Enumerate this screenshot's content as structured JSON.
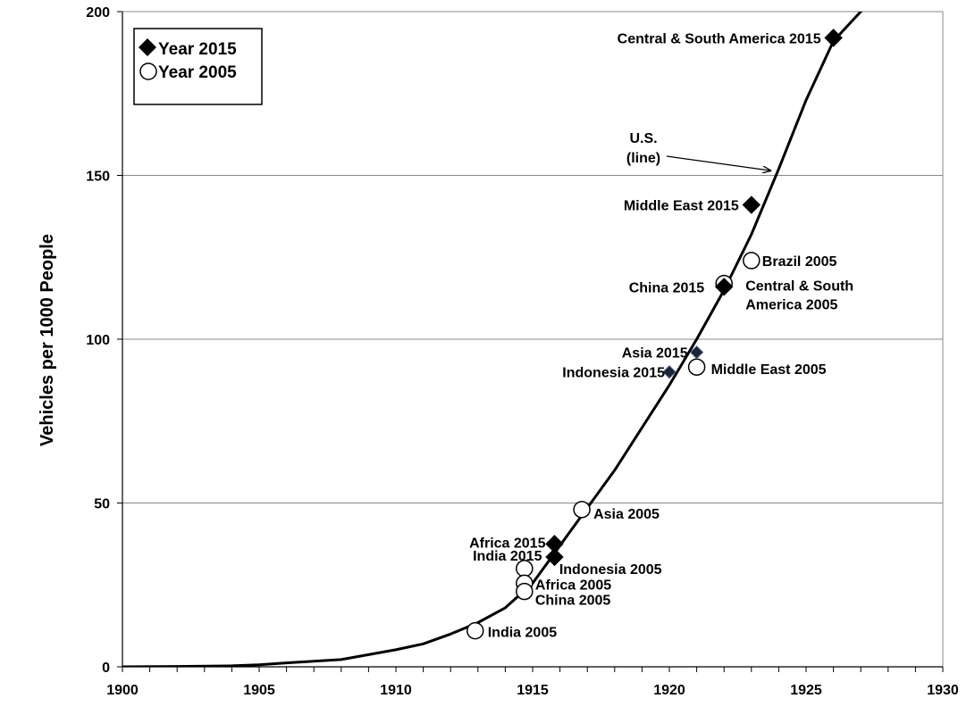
{
  "chart_data": {
    "type": "line",
    "title": "",
    "xlabel": "",
    "ylabel": "Vehicles per 1000 People",
    "xlim": [
      1900,
      1930
    ],
    "ylim": [
      0,
      200
    ],
    "x_ticks": [
      "1900",
      "1905",
      "1910",
      "1915",
      "1920",
      "1925",
      "1930"
    ],
    "y_ticks": [
      "0",
      "50",
      "100",
      "150",
      "200"
    ],
    "grid": "horizontal",
    "legend": {
      "position": "top-left",
      "entries": [
        {
          "label": "Year 2015",
          "marker": "filled-diamond"
        },
        {
          "label": "Year 2005",
          "marker": "open-circle"
        }
      ]
    },
    "us_line": {
      "x": [
        1900,
        1902,
        1904,
        1905,
        1906,
        1908,
        1910,
        1911,
        1912,
        1913,
        1914,
        1915,
        1916,
        1917,
        1918,
        1919,
        1920,
        1921,
        1922,
        1923,
        1924,
        1925,
        1926,
        1927,
        1927.5
      ],
      "y": [
        0,
        0.1,
        0.3,
        0.6,
        1.2,
        2.2,
        5.2,
        7,
        10,
        13.5,
        18,
        25.5,
        37,
        48.5,
        60,
        73,
        86,
        100,
        115,
        132,
        152,
        173,
        191,
        200,
        204
      ]
    },
    "us_line_annotation": {
      "text_line1": "U.S.",
      "text_line2": "(line)",
      "points_to": [
        1923.8,
        152
      ]
    },
    "points_2015": [
      {
        "label": "Central & South America 2015",
        "x": 1926,
        "y": 192,
        "size": "large"
      },
      {
        "label": "Middle East 2015",
        "x": 1923,
        "y": 141,
        "size": "large"
      },
      {
        "label": "China 2015",
        "x": 1922,
        "y": 116,
        "size": "large"
      },
      {
        "label": "Asia 2015",
        "x": 1921,
        "y": 96,
        "size": "small"
      },
      {
        "label": "Indonesia 2015",
        "x": 1920,
        "y": 90,
        "size": "small"
      },
      {
        "label": "Africa 2015",
        "x": 1915.8,
        "y": 37.5,
        "size": "large"
      },
      {
        "label": "India 2015",
        "x": 1915.8,
        "y": 33.5,
        "size": "large"
      }
    ],
    "points_2005": [
      {
        "label": "Brazil 2005",
        "x": 1923,
        "y": 124
      },
      {
        "label": "Central & South America 2005",
        "label_line1": "Central & South",
        "label_line2": "America 2005",
        "x": 1922,
        "y": 117
      },
      {
        "label": "Middle East 2005",
        "x": 1921,
        "y": 91.5
      },
      {
        "label": "Asia 2005",
        "x": 1916.8,
        "y": 48
      },
      {
        "label": "Indonesia 2005",
        "x": 1914.7,
        "y": 30
      },
      {
        "label": "Africa 2005",
        "x": 1914.7,
        "y": 25.5
      },
      {
        "label": "China 2005",
        "x": 1914.7,
        "y": 23
      },
      {
        "label": "India 2005",
        "x": 1912.9,
        "y": 11
      }
    ]
  }
}
